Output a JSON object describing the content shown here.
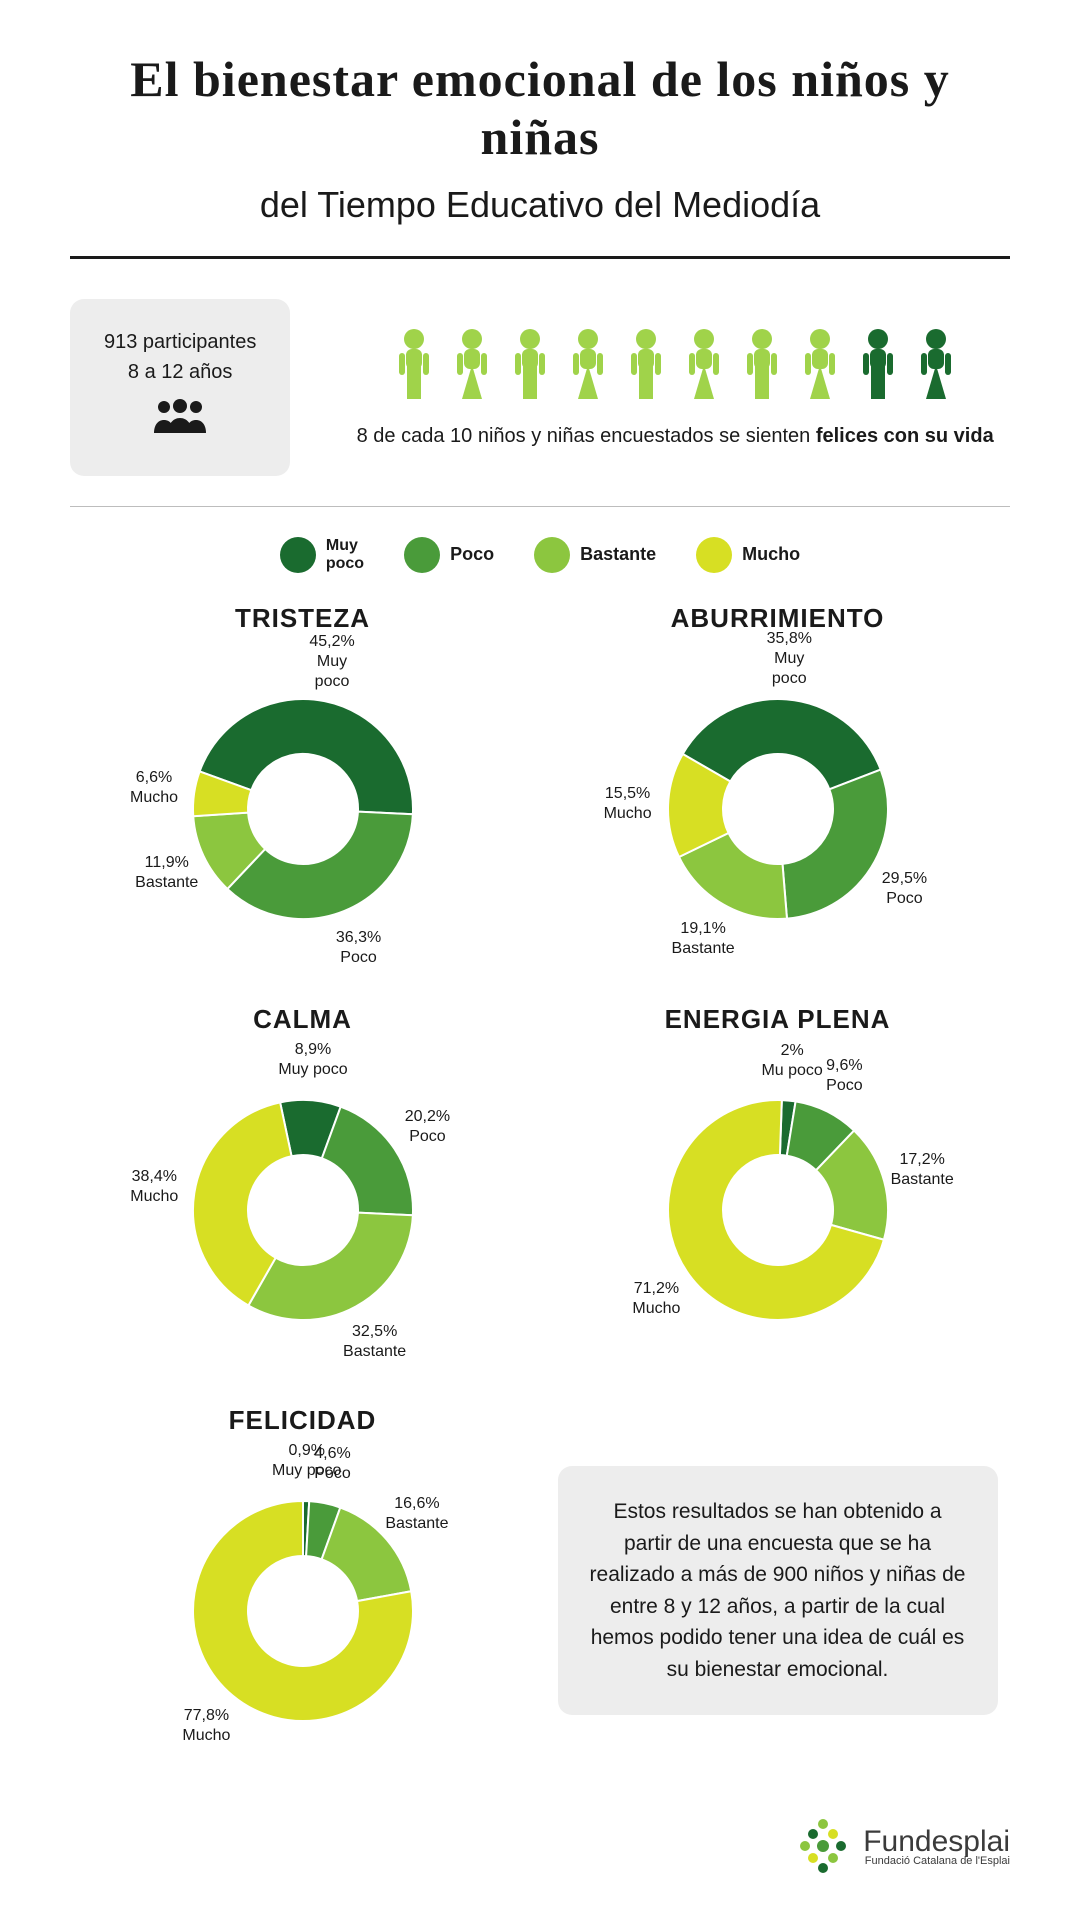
{
  "colors": {
    "muy_poco": "#1a6b2f",
    "poco": "#4a9b3a",
    "bastante": "#8cc63f",
    "mucho": "#d7df23",
    "light_people": "#a0d34a",
    "dark_people": "#1a6b2f",
    "bg_badge": "#ededed",
    "text": "#1a1a1a"
  },
  "title_script": "El bienestar emocional de los niños y niñas",
  "subtitle": "del Tiempo Educativo del Mediodía",
  "badge": {
    "line1": "913 participantes",
    "line2": "8 a 12 años"
  },
  "people": {
    "total": 10,
    "highlighted": 8,
    "caption_prefix": "8 de cada 10 niños y niñas encuestados se sienten ",
    "caption_bold": "felices con su vida"
  },
  "legend": [
    {
      "key": "muy_poco",
      "label": "Muy\npoco"
    },
    {
      "key": "poco",
      "label": "Poco"
    },
    {
      "key": "bastante",
      "label": "Bastante"
    },
    {
      "key": "mucho",
      "label": "Mucho"
    }
  ],
  "donut": {
    "outer_r": 110,
    "inner_r": 55,
    "label_r": 150,
    "size": 330
  },
  "charts": [
    {
      "title": "TRISTEZA",
      "start_angle": -70,
      "slices": [
        {
          "key": "muy_poco",
          "value": 45.2,
          "l1": "45,2%",
          "l2": "Muy",
          "l3": "poco"
        },
        {
          "key": "poco",
          "value": 36.3,
          "l1": "36,3%",
          "l2": "Poco"
        },
        {
          "key": "bastante",
          "value": 11.9,
          "l1": "11,9%",
          "l2": "Bastante"
        },
        {
          "key": "mucho",
          "value": 6.6,
          "l1": "6,6%",
          "l2": "Mucho"
        }
      ]
    },
    {
      "title": "ABURRIMIENTO",
      "start_angle": -60,
      "slices": [
        {
          "key": "muy_poco",
          "value": 35.8,
          "l1": "35,8%",
          "l2": "Muy",
          "l3": "poco"
        },
        {
          "key": "poco",
          "value": 29.5,
          "l1": "29,5%",
          "l2": "Poco"
        },
        {
          "key": "bastante",
          "value": 19.1,
          "l1": "19,1%",
          "l2": "Bastante"
        },
        {
          "key": "mucho",
          "value": 15.5,
          "l1": "15,5%",
          "l2": "Mucho"
        }
      ]
    },
    {
      "title": "CALMA",
      "start_angle": -12,
      "slices": [
        {
          "key": "muy_poco",
          "value": 8.9,
          "l1": "8,9%",
          "l2": "Muy poco"
        },
        {
          "key": "poco",
          "value": 20.2,
          "l1": "20,2%",
          "l2": "Poco"
        },
        {
          "key": "bastante",
          "value": 32.5,
          "l1": "32,5%",
          "l2": "Bastante"
        },
        {
          "key": "mucho",
          "value": 38.4,
          "l1": "38,4%",
          "l2": "Mucho"
        }
      ]
    },
    {
      "title": "ENERGIA PLENA",
      "start_angle": 2,
      "slices": [
        {
          "key": "muy_poco",
          "value": 2.0,
          "l1": "2%",
          "l2": "Mu poco"
        },
        {
          "key": "poco",
          "value": 9.6,
          "l1": "9,6%",
          "l2": "Poco"
        },
        {
          "key": "bastante",
          "value": 17.2,
          "l1": "17,2%",
          "l2": "Bastante"
        },
        {
          "key": "mucho",
          "value": 71.2,
          "l1": "71,2%",
          "l2": "Mucho"
        }
      ]
    },
    {
      "title": "FELICIDAD",
      "start_angle": 0,
      "slices": [
        {
          "key": "muy_poco",
          "value": 0.9,
          "l1": "0,9%",
          "l2": "Muy poco"
        },
        {
          "key": "poco",
          "value": 4.6,
          "l1": "4,6%",
          "l2": "Poco"
        },
        {
          "key": "bastante",
          "value": 16.6,
          "l1": "16,6%",
          "l2": "Bastante"
        },
        {
          "key": "mucho",
          "value": 77.8,
          "l1": "77,8%",
          "l2": "Mucho"
        }
      ]
    }
  ],
  "note": "Estos resultados se han obtenido a partir de una encuesta que se ha realizado a más de 900 niños y niñas de entre 8 y 12 años, a partir de la cual hemos podido tener una idea de cuál es su bienestar emocional.",
  "footer": {
    "brand": "Fundesplai",
    "sub": "Fundació Catalana de l'Esplai"
  }
}
